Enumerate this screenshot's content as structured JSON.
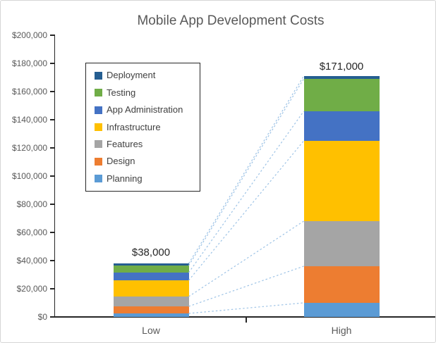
{
  "chart": {
    "title": "Mobile App Development Costs"
  },
  "chart_data": {
    "type": "bar",
    "subtype": "stacked",
    "title": "Mobile App Development Costs",
    "categories": [
      "Low",
      "High"
    ],
    "series": [
      {
        "name": "Planning",
        "color": "#5B9BD5",
        "values": [
          2500,
          10000
        ]
      },
      {
        "name": "Design",
        "color": "#ED7D31",
        "values": [
          5000,
          26000
        ]
      },
      {
        "name": "Features",
        "color": "#A5A5A5",
        "values": [
          7000,
          32000
        ]
      },
      {
        "name": "Infrastructure",
        "color": "#FFC000",
        "values": [
          11500,
          57000
        ]
      },
      {
        "name": "App Administration",
        "color": "#4472C4",
        "values": [
          5500,
          21000
        ]
      },
      {
        "name": "Testing",
        "color": "#70AD47",
        "values": [
          5000,
          23000
        ]
      },
      {
        "name": "Deployment",
        "color": "#255E91",
        "values": [
          1500,
          2000
        ]
      }
    ],
    "totals": [
      38000,
      171000
    ],
    "total_labels": [
      "$38,000",
      "$171,000"
    ],
    "xlabel": "",
    "ylabel": "",
    "ylim": [
      0,
      200000
    ],
    "ytick_step": 20000,
    "ytick_labels": [
      "$0",
      "$20,000",
      "$40,000",
      "$60,000",
      "$80,000",
      "$100,000",
      "$120,000",
      "$140,000",
      "$160,000",
      "$180,000",
      "$200,000"
    ],
    "grid": false,
    "legend": {
      "position": "inside-top-left",
      "order": [
        "Deployment",
        "Testing",
        "App Administration",
        "Infrastructure",
        "Features",
        "Design",
        "Planning"
      ]
    },
    "series_lines": {
      "show": true,
      "style": "dashed",
      "color": "#9DC3E6"
    },
    "axis_color": "#262626",
    "label_color": "#595959"
  }
}
